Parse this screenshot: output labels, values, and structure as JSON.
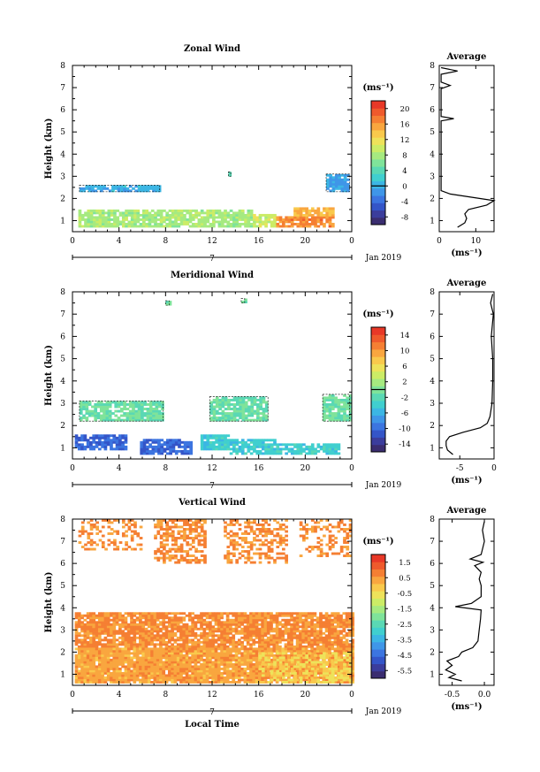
{
  "chart_data": [
    {
      "id": "zonal",
      "type": "heatmap",
      "title": "Zonal Wind",
      "xlabel": "",
      "ylabel": "Height (km)",
      "date_label": "Jan 2019",
      "day_label": "7",
      "xticks": [
        "0",
        "4",
        "8",
        "12",
        "16",
        "20",
        "0"
      ],
      "xlim": [
        0,
        24
      ],
      "ylim": [
        0.5,
        8
      ],
      "yticks": [
        "1",
        "2",
        "3",
        "4",
        "5",
        "6",
        "7",
        "8"
      ],
      "colorbar": {
        "unit": "(ms⁻¹)",
        "ticks": [
          "20",
          "16",
          "12",
          "8",
          "4",
          "0",
          "-4",
          "-8"
        ],
        "range": [
          -10,
          22
        ],
        "contour_line": 0
      },
      "regions": [
        {
          "x": [
            0.5,
            8.5
          ],
          "y": [
            0.7,
            1.5
          ],
          "value": 8
        },
        {
          "x": [
            8.5,
            15.5
          ],
          "y": [
            0.7,
            1.5
          ],
          "value": 8
        },
        {
          "x": [
            15.5,
            17.5
          ],
          "y": [
            0.7,
            1.3
          ],
          "value": 10
        },
        {
          "x": [
            17.5,
            22.5
          ],
          "y": [
            0.7,
            1.2
          ],
          "value": 17
        },
        {
          "x": [
            19.0,
            22.5
          ],
          "y": [
            1.2,
            1.6
          ],
          "value": 15
        },
        {
          "x": [
            0.6,
            7.5
          ],
          "y": [
            2.3,
            2.6
          ],
          "value": 0
        },
        {
          "x": [
            21.8,
            23.8
          ],
          "y": [
            2.3,
            3.1
          ],
          "value": -1
        },
        {
          "x": [
            13.4,
            13.6
          ],
          "y": [
            3.0,
            3.2
          ],
          "value": 2
        }
      ],
      "average": {
        "title": "Average",
        "xlabel": "(ms⁻¹)",
        "xlim": [
          0,
          15
        ],
        "xticks": [
          "0",
          "10"
        ],
        "tick_values": [
          0,
          10
        ],
        "profile": [
          {
            "h": 0.7,
            "v": 5
          },
          {
            "h": 0.9,
            "v": 7
          },
          {
            "h": 1.1,
            "v": 7.5
          },
          {
            "h": 1.3,
            "v": 7
          },
          {
            "h": 1.5,
            "v": 8
          },
          {
            "h": 1.7,
            "v": 13
          },
          {
            "h": 1.9,
            "v": 15
          },
          {
            "h": 2.05,
            "v": 9
          },
          {
            "h": 2.2,
            "v": 3
          },
          {
            "h": 2.35,
            "v": 0.5
          },
          {
            "h": 5.5,
            "v": 0.5
          },
          {
            "h": 5.6,
            "v": 4
          },
          {
            "h": 5.7,
            "v": 0.5
          },
          {
            "h": 6.95,
            "v": 0.5
          },
          {
            "h": 7.1,
            "v": 3
          },
          {
            "h": 7.25,
            "v": 0.5
          },
          {
            "h": 7.6,
            "v": 0.5
          },
          {
            "h": 7.75,
            "v": 5
          },
          {
            "h": 7.9,
            "v": 0.5
          }
        ]
      }
    },
    {
      "id": "meridional",
      "type": "heatmap",
      "title": "Meridional Wind",
      "xlabel": "",
      "ylabel": "Height (km)",
      "date_label": "Jan 2019",
      "day_label": "7",
      "xticks": [
        "0",
        "4",
        "8",
        "12",
        "16",
        "20",
        "0"
      ],
      "xlim": [
        0,
        24
      ],
      "ylim": [
        0.5,
        8
      ],
      "yticks": [
        "1",
        "2",
        "3",
        "4",
        "5",
        "6",
        "7",
        "8"
      ],
      "colorbar": {
        "unit": "(ms⁻¹)",
        "ticks": [
          "14",
          "10",
          "6",
          "2",
          "-2",
          "-6",
          "-10",
          "-14"
        ],
        "range": [
          -16,
          16
        ],
        "contour_line": 0
      },
      "regions": [
        {
          "x": [
            0.2,
            4.5
          ],
          "y": [
            0.9,
            1.6
          ],
          "value": -10
        },
        {
          "x": [
            5.8,
            10.2
          ],
          "y": [
            0.7,
            1.4
          ],
          "value": -10
        },
        {
          "x": [
            11.0,
            13.5
          ],
          "y": [
            0.9,
            1.6
          ],
          "value": -4
        },
        {
          "x": [
            13.5,
            17.5
          ],
          "y": [
            0.7,
            1.4
          ],
          "value": -4
        },
        {
          "x": [
            17.5,
            23.0
          ],
          "y": [
            0.7,
            1.2
          ],
          "value": -4
        },
        {
          "x": [
            0.6,
            7.8
          ],
          "y": [
            2.2,
            3.1
          ],
          "value": -1
        },
        {
          "x": [
            11.8,
            16.8
          ],
          "y": [
            2.2,
            3.3
          ],
          "value": -1
        },
        {
          "x": [
            21.5,
            23.8
          ],
          "y": [
            2.2,
            3.4
          ],
          "value": -1
        },
        {
          "x": [
            8.0,
            8.3
          ],
          "y": [
            7.4,
            7.6
          ],
          "value": -1
        },
        {
          "x": [
            14.5,
            14.8
          ],
          "y": [
            7.5,
            7.7
          ],
          "value": -1
        }
      ],
      "average": {
        "title": "Average",
        "xlabel": "(ms⁻¹)",
        "xlim": [
          -8,
          0
        ],
        "xticks": [
          "-5",
          "0"
        ],
        "tick_values": [
          -5,
          0
        ],
        "profile": [
          {
            "h": 0.7,
            "v": -6
          },
          {
            "h": 0.9,
            "v": -6.8
          },
          {
            "h": 1.1,
            "v": -7
          },
          {
            "h": 1.3,
            "v": -7
          },
          {
            "h": 1.5,
            "v": -6.5
          },
          {
            "h": 1.7,
            "v": -4.5
          },
          {
            "h": 1.9,
            "v": -2
          },
          {
            "h": 2.1,
            "v": -1
          },
          {
            "h": 2.4,
            "v": -0.6
          },
          {
            "h": 3.0,
            "v": -0.3
          },
          {
            "h": 4.0,
            "v": -0.2
          },
          {
            "h": 5.0,
            "v": -0.2
          },
          {
            "h": 6.0,
            "v": -0.4
          },
          {
            "h": 7.0,
            "v": -0.1
          },
          {
            "h": 7.5,
            "v": -0.5
          },
          {
            "h": 7.9,
            "v": -0.2
          }
        ]
      }
    },
    {
      "id": "vertical",
      "type": "heatmap",
      "title": "Vertical Wind",
      "xlabel": "Local Time",
      "ylabel": "Height (km)",
      "date_label": "Jan 2019",
      "day_label": "7",
      "xticks": [
        "0",
        "4",
        "8",
        "12",
        "16",
        "20",
        "0"
      ],
      "xlim": [
        0,
        24
      ],
      "ylim": [
        0.5,
        8
      ],
      "yticks": [
        "1",
        "2",
        "3",
        "4",
        "5",
        "6",
        "7",
        "8"
      ],
      "colorbar": {
        "unit": "(ms⁻¹)",
        "ticks": [
          "1.5",
          "0.5",
          "-0.5",
          "-1.5",
          "-2.5",
          "-3.5",
          "-4.5",
          "-5.5"
        ],
        "range": [
          -6.5,
          2.0
        ],
        "contour_line": null
      },
      "regions": [
        {
          "x": [
            0.2,
            24
          ],
          "y": [
            2.2,
            3.8
          ],
          "value": 0.6,
          "density": 0.85
        },
        {
          "x": [
            0.2,
            24
          ],
          "y": [
            0.6,
            2.2
          ],
          "value": 0.3,
          "density": 0.95
        },
        {
          "x": [
            16.0,
            24
          ],
          "y": [
            0.6,
            2.0
          ],
          "value": -0.6,
          "density": 0.45
        },
        {
          "x": [
            0.5,
            6.0
          ],
          "y": [
            6.6,
            8.0
          ],
          "value": 0.6,
          "density": 0.35
        },
        {
          "x": [
            7.0,
            11.5
          ],
          "y": [
            6.0,
            8.0
          ],
          "value": 0.6,
          "density": 0.55
        },
        {
          "x": [
            13.0,
            18.5
          ],
          "y": [
            6.0,
            8.0
          ],
          "value": 0.6,
          "density": 0.45
        },
        {
          "x": [
            19.5,
            24
          ],
          "y": [
            6.3,
            8.0
          ],
          "value": 0.6,
          "density": 0.35
        }
      ],
      "average": {
        "title": "Average",
        "xlabel": "(ms⁻¹)",
        "xlim": [
          -0.7,
          0.15
        ],
        "xticks": [
          "-0.5",
          "0.0"
        ],
        "tick_values": [
          -0.5,
          0.0
        ],
        "profile": [
          {
            "h": 0.7,
            "v": -0.35
          },
          {
            "h": 0.85,
            "v": -0.55
          },
          {
            "h": 1.0,
            "v": -0.45
          },
          {
            "h": 1.2,
            "v": -0.6
          },
          {
            "h": 1.4,
            "v": -0.5
          },
          {
            "h": 1.6,
            "v": -0.58
          },
          {
            "h": 1.8,
            "v": -0.4
          },
          {
            "h": 2.0,
            "v": -0.35
          },
          {
            "h": 2.2,
            "v": -0.18
          },
          {
            "h": 2.5,
            "v": -0.1
          },
          {
            "h": 3.0,
            "v": -0.08
          },
          {
            "h": 3.5,
            "v": -0.06
          },
          {
            "h": 3.9,
            "v": -0.05
          },
          {
            "h": 4.05,
            "v": -0.45
          },
          {
            "h": 4.2,
            "v": -0.2
          },
          {
            "h": 4.5,
            "v": -0.05
          },
          {
            "h": 5.0,
            "v": -0.05
          },
          {
            "h": 5.3,
            "v": -0.08
          },
          {
            "h": 5.6,
            "v": -0.05
          },
          {
            "h": 5.9,
            "v": -0.15
          },
          {
            "h": 6.05,
            "v": -0.02
          },
          {
            "h": 6.2,
            "v": -0.22
          },
          {
            "h": 6.4,
            "v": -0.05
          },
          {
            "h": 7.0,
            "v": 0.0
          },
          {
            "h": 7.5,
            "v": -0.03
          },
          {
            "h": 7.9,
            "v": 0.0
          }
        ]
      }
    }
  ]
}
